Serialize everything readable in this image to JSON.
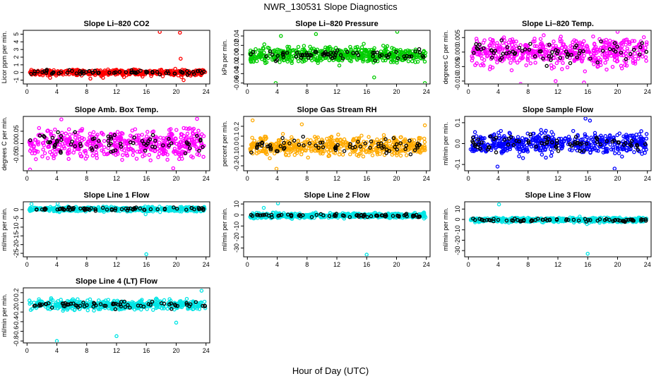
{
  "figure": {
    "title": "NWR_130531  Slope Diagnostics",
    "xlabel": "Hour of Day (UTC)"
  },
  "chart_data": [
    {
      "type": "scatter",
      "title": "Slope Li–820 CO2",
      "ylabel": "Licor ppm per min.",
      "color": "#ff0000",
      "xlim": [
        -0.5,
        24.5
      ],
      "ylim": [
        -1.5,
        5.5
      ],
      "xticks": [
        0,
        4,
        8,
        12,
        16,
        20,
        24
      ],
      "yticks": [
        -1,
        0,
        1,
        2,
        3,
        4,
        5
      ],
      "yticklabels": [
        "-1",
        "0",
        "1",
        "2",
        "3",
        "4",
        "5"
      ],
      "center": 0,
      "spread": 0.25,
      "clip": [
        -0.9,
        0.9
      ],
      "outliers": [
        [
          17.8,
          5.3
        ],
        [
          20.5,
          5.2
        ],
        [
          20.6,
          1.8
        ],
        [
          20.7,
          -0.6
        ],
        [
          21.0,
          -1.0
        ],
        [
          8.5,
          -0.8
        ],
        [
          10.2,
          -0.7
        ],
        [
          13.0,
          -0.6
        ],
        [
          18.2,
          -0.5
        ],
        [
          3.1,
          -0.7
        ]
      ]
    },
    {
      "type": "scatter",
      "title": "Slope Li–820 Pressure",
      "ylabel": "kPa per min.",
      "color": "#00cc00",
      "xlim": [
        -0.5,
        24.5
      ],
      "ylim": [
        -0.062,
        0.052
      ],
      "xticks": [
        0,
        4,
        8,
        12,
        16,
        20,
        24
      ],
      "yticks": [
        -0.06,
        -0.04,
        -0.02,
        0,
        0.02,
        0.04
      ],
      "yticklabels": [
        "-0.06",
        "-0.04",
        "-0.02",
        "0.00",
        "0.02",
        "0.04"
      ],
      "center": 0,
      "spread": 0.011,
      "clip": [
        -0.035,
        0.035
      ],
      "outliers": [
        [
          3.8,
          -0.06
        ],
        [
          23.8,
          -0.06
        ],
        [
          20.1,
          0.049
        ],
        [
          4.5,
          0.04
        ],
        [
          17.0,
          -0.048
        ],
        [
          9.2,
          0.044
        ]
      ]
    },
    {
      "type": "scatter",
      "title": "Slope Li–820 Temp.",
      "ylabel": "degrees C per min.",
      "color": "#ff00ff",
      "xlim": [
        -0.5,
        24.5
      ],
      "ylim": [
        -0.011,
        0.0075
      ],
      "xticks": [
        0,
        4,
        8,
        12,
        16,
        20,
        24
      ],
      "yticks": [
        -0.01,
        -0.005,
        0,
        0.005
      ],
      "yticklabels": [
        "-0.010",
        "-0.005",
        "0.000",
        "0.005"
      ],
      "center": 0,
      "spread": 0.0035,
      "clip": [
        -0.009,
        0.0065
      ],
      "outliers": [
        [
          20.0,
          0.007
        ],
        [
          7.0,
          -0.011
        ],
        [
          15.5,
          -0.0105
        ],
        [
          11.7,
          -0.01
        ]
      ]
    },
    {
      "type": "scatter",
      "title": "Slope Amb. Box Temp.",
      "ylabel": "degrees C per min.",
      "color": "#ff00ff",
      "xlim": [
        -0.5,
        24.5
      ],
      "ylim": [
        -0.11,
        0.11
      ],
      "xticks": [
        0,
        4,
        8,
        12,
        16,
        20,
        24
      ],
      "yticks": [
        -0.05,
        0,
        0.05
      ],
      "yticklabels": [
        "-0.05",
        "0.00",
        "0.05"
      ],
      "center": 0,
      "spread": 0.04,
      "clip": [
        -0.1,
        0.1
      ],
      "outliers": [
        [
          0.4,
          -0.105
        ],
        [
          4.6,
          0.098
        ],
        [
          22.8,
          0.1
        ],
        [
          19.6,
          -0.1
        ]
      ]
    },
    {
      "type": "scatter",
      "title": "Slope Gas Stream RH",
      "ylabel": "percent per min.",
      "color": "#ffaa00",
      "xlim": [
        -0.5,
        24.5
      ],
      "ylim": [
        -0.25,
        0.3
      ],
      "xticks": [
        0,
        4,
        8,
        12,
        16,
        20,
        24
      ],
      "yticks": [
        -0.2,
        -0.1,
        0,
        0.1,
        0.2
      ],
      "yticklabels": [
        "-0.2",
        "-0.1",
        "0.0",
        "0.1",
        "0.2"
      ],
      "center": 0,
      "spread": 0.07,
      "clip": [
        -0.22,
        0.24
      ],
      "outliers": [
        [
          3.9,
          -0.23
        ],
        [
          0.7,
          0.26
        ],
        [
          7.3,
          0.22
        ],
        [
          23.8,
          0.21
        ]
      ]
    },
    {
      "type": "scatter",
      "title": "Slope Sample Flow",
      "ylabel": "ml/min per min.",
      "color": "#0000ff",
      "xlim": [
        -0.5,
        24.5
      ],
      "ylim": [
        -0.13,
        0.13
      ],
      "xticks": [
        0,
        4,
        8,
        12,
        16,
        20,
        24
      ],
      "yticks": [
        -0.1,
        0,
        0.1
      ],
      "yticklabels": [
        "-0.1",
        "0.0",
        "0.1"
      ],
      "center": 0,
      "spread": 0.035,
      "clip": [
        -0.09,
        0.1
      ],
      "outliers": [
        [
          3.9,
          -0.11
        ],
        [
          19.6,
          -0.12
        ],
        [
          15.7,
          0.12
        ],
        [
          16.3,
          0.11
        ]
      ]
    },
    {
      "type": "scatter",
      "title": "Slope Line 1 Flow",
      "ylabel": "ml/min per min.",
      "color": "#00e5e5",
      "xlim": [
        -0.5,
        24.5
      ],
      "ylim": [
        -27,
        4.5
      ],
      "xticks": [
        0,
        4,
        8,
        12,
        16,
        20,
        24
      ],
      "yticks": [
        -25,
        -20,
        -15,
        -10,
        -5,
        0
      ],
      "yticklabels": [
        "-25",
        "-20",
        "-15",
        "-10",
        "-5",
        "0"
      ],
      "center": 0.3,
      "spread": 0.9,
      "clip": [
        -2,
        2.5
      ],
      "outliers": [
        [
          16.0,
          -25.5
        ],
        [
          4.1,
          3.5
        ],
        [
          0.6,
          3.2
        ],
        [
          15.9,
          -2.6
        ]
      ]
    },
    {
      "type": "scatter",
      "title": "Slope Line 2 Flow",
      "ylabel": "ml/min per min.",
      "color": "#00e5e5",
      "xlim": [
        -0.5,
        24.5
      ],
      "ylim": [
        -38,
        12
      ],
      "xticks": [
        0,
        4,
        8,
        12,
        16,
        20,
        24
      ],
      "yticks": [
        -30,
        -20,
        -10,
        0,
        10
      ],
      "yticklabels": [
        "-30",
        "-20",
        "-10",
        "0",
        "10"
      ],
      "center": -0.5,
      "spread": 1.5,
      "clip": [
        -4,
        4
      ],
      "outliers": [
        [
          16.0,
          -36
        ],
        [
          4.1,
          10.5
        ],
        [
          2.2,
          6.5
        ]
      ]
    },
    {
      "type": "scatter",
      "title": "Slope Line 3 Flow",
      "ylabel": "ml/min per min.",
      "color": "#00e5e5",
      "xlim": [
        -0.5,
        24.5
      ],
      "ylim": [
        -36,
        17
      ],
      "xticks": [
        0,
        4,
        8,
        12,
        16,
        20,
        24
      ],
      "yticks": [
        -30,
        -20,
        -10,
        0,
        10
      ],
      "yticklabels": [
        "-30",
        "-20",
        "-10",
        "0",
        "10"
      ],
      "center": -0.5,
      "spread": 1.5,
      "clip": [
        -4,
        4
      ],
      "outliers": [
        [
          16.0,
          -33
        ],
        [
          4.1,
          14.5
        ],
        [
          15.9,
          -4.5
        ]
      ]
    },
    {
      "type": "scatter",
      "title": "Slope Line 4 (LT) Flow",
      "ylabel": "ml/min per min.",
      "color": "#00e5e5",
      "xlim": [
        -0.5,
        24.5
      ],
      "ylim": [
        -0.84,
        0.3
      ],
      "xticks": [
        0,
        4,
        8,
        12,
        16,
        20,
        24
      ],
      "yticks": [
        -0.8,
        -0.6,
        -0.4,
        -0.2,
        0,
        0.2
      ],
      "yticklabels": [
        "-0.8",
        "-0.6",
        "-0.4",
        "-0.2",
        "0.0",
        "0.2"
      ],
      "center": -0.05,
      "spread": 0.07,
      "clip": [
        -0.2,
        0.2
      ],
      "outliers": [
        [
          4.0,
          -0.8
        ],
        [
          12.0,
          -0.7
        ],
        [
          20.0,
          -0.42
        ],
        [
          23.4,
          0.24
        ]
      ]
    }
  ]
}
